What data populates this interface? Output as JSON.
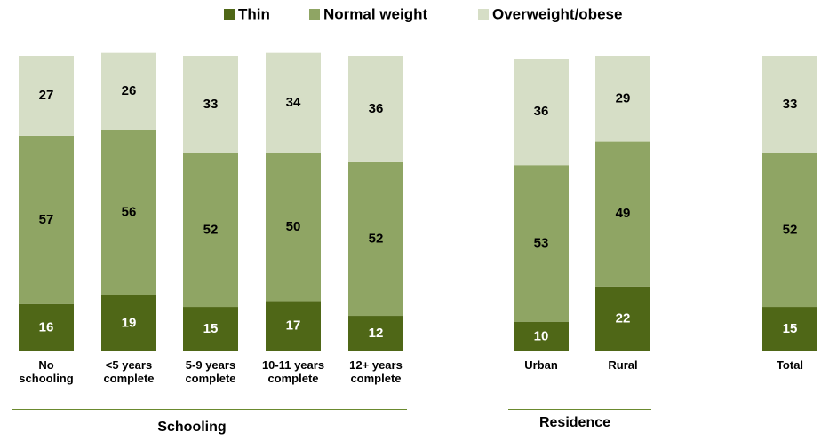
{
  "chart_data": {
    "type": "stacked_bar",
    "categories": [
      "No\nschooling",
      "<5 years\ncomplete",
      "5-9 years\ncomplete",
      "10-11 years\ncomplete",
      "12+ years\ncomplete",
      "Urban",
      "Rural",
      "Total"
    ],
    "series": [
      {
        "name": "Thin",
        "color": "#4f6717",
        "values": [
          16,
          19,
          15,
          17,
          12,
          10,
          22,
          15
        ]
      },
      {
        "name": "Normal weight",
        "color": "#8fa564",
        "values": [
          57,
          56,
          52,
          50,
          52,
          53,
          49,
          52
        ]
      },
      {
        "name": "Overweight/obese",
        "color": "#d6dec6",
        "values": [
          27,
          26,
          33,
          34,
          36,
          36,
          29,
          33
        ]
      }
    ],
    "group_labels": [
      "Schooling",
      "Residence"
    ],
    "ylim": [
      0,
      100
    ]
  }
}
